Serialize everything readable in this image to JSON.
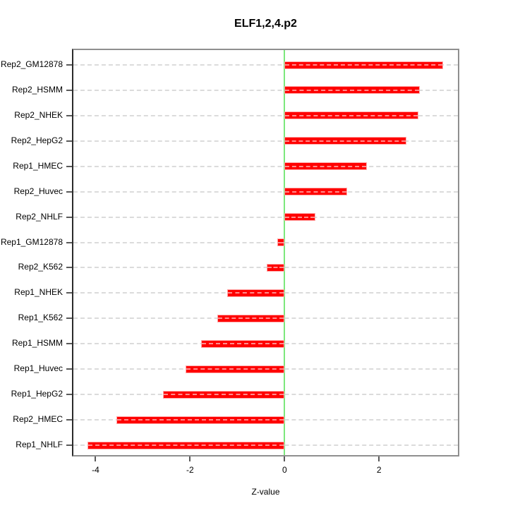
{
  "colors": {
    "bar": "#ff0000",
    "bar_border": "#ffa8a8",
    "zero_line": "#7ce87c",
    "grid": "#dbdbdb",
    "frame": "#8f8f8f"
  },
  "chart_data": {
    "type": "bar",
    "orientation": "horizontal",
    "title": "ELF1,2,4.p2",
    "xlabel": "Z-value",
    "ylabel": "",
    "categories": [
      "Rep2_GM12878",
      "Rep2_HSMM",
      "Rep2_NHEK",
      "Rep2_HepG2",
      "Rep1_HMEC",
      "Rep2_Huvec",
      "Rep2_NHLF",
      "Rep1_GM12878",
      "Rep2_K562",
      "Rep1_NHEK",
      "Rep1_K562",
      "Rep1_HSMM",
      "Rep1_Huvec",
      "Rep1_HepG2",
      "Rep2_HMEC",
      "Rep1_NHLF"
    ],
    "values": [
      3.35,
      2.87,
      2.83,
      2.58,
      1.74,
      1.32,
      0.66,
      -0.15,
      -0.38,
      -1.22,
      -1.42,
      -1.76,
      -2.09,
      -2.58,
      -3.56,
      -4.17
    ],
    "x_ticks": [
      -4,
      -2,
      0,
      2
    ],
    "x_tick_labels": [
      "-4",
      "-2",
      "0",
      "2"
    ],
    "xlim": [
      -4.47,
      3.67
    ],
    "zero_reference_line": 0,
    "grid": "horizontal-dashed-per-category",
    "legend": "none"
  }
}
